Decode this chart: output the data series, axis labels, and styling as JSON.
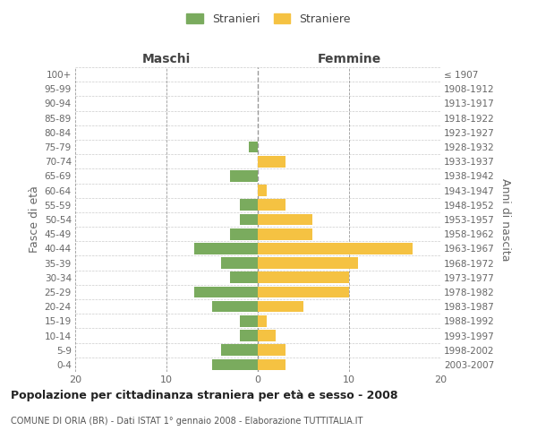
{
  "age_groups": [
    "0-4",
    "5-9",
    "10-14",
    "15-19",
    "20-24",
    "25-29",
    "30-34",
    "35-39",
    "40-44",
    "45-49",
    "50-54",
    "55-59",
    "60-64",
    "65-69",
    "70-74",
    "75-79",
    "80-84",
    "85-89",
    "90-94",
    "95-99",
    "100+"
  ],
  "birth_years": [
    "2003-2007",
    "1998-2002",
    "1993-1997",
    "1988-1992",
    "1983-1987",
    "1978-1982",
    "1973-1977",
    "1968-1972",
    "1963-1967",
    "1958-1962",
    "1953-1957",
    "1948-1952",
    "1943-1947",
    "1938-1942",
    "1933-1937",
    "1928-1932",
    "1923-1927",
    "1918-1922",
    "1913-1917",
    "1908-1912",
    "≤ 1907"
  ],
  "males": [
    5,
    4,
    2,
    2,
    5,
    7,
    3,
    4,
    7,
    3,
    2,
    2,
    0,
    3,
    0,
    1,
    0,
    0,
    0,
    0,
    0
  ],
  "females": [
    3,
    3,
    2,
    1,
    5,
    10,
    10,
    11,
    17,
    6,
    6,
    3,
    1,
    0,
    3,
    0,
    0,
    0,
    0,
    0,
    0
  ],
  "male_color": "#7aab5e",
  "female_color": "#f5c242",
  "grid_color": "#cccccc",
  "center_line_color": "#999999",
  "bg_color": "#ffffff",
  "title": "Popolazione per cittadinanza straniera per età e sesso - 2008",
  "subtitle": "COMUNE DI ORIA (BR) - Dati ISTAT 1° gennaio 2008 - Elaborazione TUTTITALIA.IT",
  "header_left": "Maschi",
  "header_right": "Femmine",
  "ylabel_left": "Fasce di età",
  "ylabel_right": "Anni di nascita",
  "legend_male": "Stranieri",
  "legend_female": "Straniere",
  "xlim": 20
}
